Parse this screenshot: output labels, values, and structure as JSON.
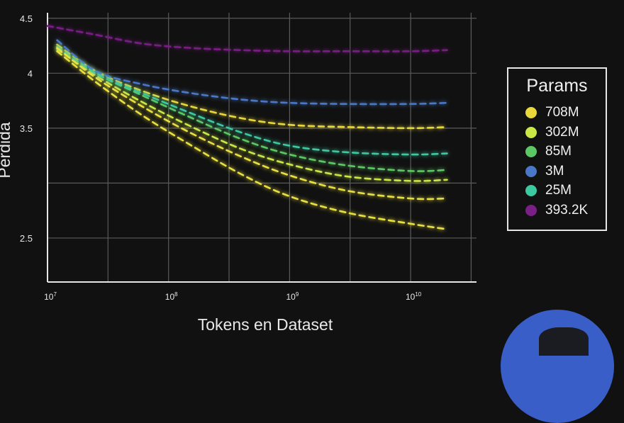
{
  "chart_data": {
    "type": "line",
    "xlabel": "Tokens en Dataset",
    "ylabel": "Pérdida",
    "x_scale": "log",
    "xlim": [
      10000000,
      35000000000
    ],
    "ylim": [
      2.1,
      4.55
    ],
    "x_ticks": [
      {
        "value": 10000000,
        "base": "10",
        "exp": "7"
      },
      {
        "value": 100000000,
        "base": "10",
        "exp": "8"
      },
      {
        "value": 1000000000,
        "base": "10",
        "exp": "9"
      },
      {
        "value": 10000000000,
        "base": "10",
        "exp": "10"
      }
    ],
    "y_ticks": [
      {
        "value": 4.5,
        "label": "4.5"
      },
      {
        "value": 4.0,
        "label": "4"
      },
      {
        "value": 3.5,
        "label": "3.5"
      },
      {
        "value": 2.5,
        "label": "2.5"
      }
    ],
    "grid": true,
    "legend_position": "right",
    "legend_title": "Params",
    "series": [
      {
        "name": "708M",
        "color": "#e8d83a",
        "x": [
          12000000,
          25000000,
          60000000,
          150000000,
          400000000,
          1000000000,
          3000000000,
          10000000000,
          20000000000
        ],
        "y": [
          4.26,
          4.02,
          3.84,
          3.7,
          3.59,
          3.53,
          3.51,
          3.5,
          3.51
        ]
      },
      {
        "name": "302M",
        "color": "#c9e846",
        "x": [
          12000000,
          25000000,
          60000000,
          150000000,
          400000000,
          1000000000,
          3000000000,
          10000000000,
          20000000000
        ],
        "y": [
          4.22,
          3.98,
          3.74,
          3.52,
          3.31,
          3.17,
          3.06,
          3.02,
          3.03
        ]
      },
      {
        "name": "85M",
        "color": "#5cc864",
        "x": [
          12000000,
          25000000,
          60000000,
          150000000,
          400000000,
          1000000000,
          3000000000,
          10000000000,
          20000000000
        ],
        "y": [
          4.24,
          4.0,
          3.8,
          3.6,
          3.4,
          3.26,
          3.16,
          3.11,
          3.12
        ]
      },
      {
        "name": "3M",
        "color": "#4a78c8",
        "x": [
          12000000,
          25000000,
          60000000,
          150000000,
          400000000,
          1000000000,
          3000000000,
          10000000000,
          20000000000
        ],
        "y": [
          4.3,
          4.02,
          3.9,
          3.82,
          3.76,
          3.73,
          3.72,
          3.72,
          3.73
        ]
      },
      {
        "name": "25M",
        "color": "#3cc8a0",
        "x": [
          12000000,
          25000000,
          60000000,
          150000000,
          400000000,
          1000000000,
          3000000000,
          10000000000,
          20000000000
        ],
        "y": [
          4.24,
          4.0,
          3.82,
          3.64,
          3.46,
          3.34,
          3.28,
          3.26,
          3.27
        ]
      },
      {
        "name": "393.2K",
        "color": "#7a1f86",
        "x": [
          10000000,
          25000000,
          60000000,
          150000000,
          400000000,
          1000000000,
          3000000000,
          10000000000,
          20000000000
        ],
        "y": [
          4.43,
          4.35,
          4.27,
          4.23,
          4.21,
          4.2,
          4.2,
          4.2,
          4.21
        ]
      },
      {
        "name": "",
        "color": "#e8e040",
        "x": [
          12000000,
          25000000,
          60000000,
          150000000,
          400000000,
          1000000000,
          3000000000,
          10000000000,
          20000000000
        ],
        "y": [
          4.2,
          3.92,
          3.62,
          3.35,
          3.08,
          2.88,
          2.73,
          2.63,
          2.58
        ]
      },
      {
        "name": "",
        "color": "#e8e040",
        "x": [
          12000000,
          25000000,
          60000000,
          150000000,
          400000000,
          1000000000,
          3000000000,
          10000000000,
          20000000000
        ],
        "y": [
          4.23,
          3.96,
          3.7,
          3.46,
          3.24,
          3.07,
          2.93,
          2.86,
          2.86
        ]
      }
    ]
  }
}
